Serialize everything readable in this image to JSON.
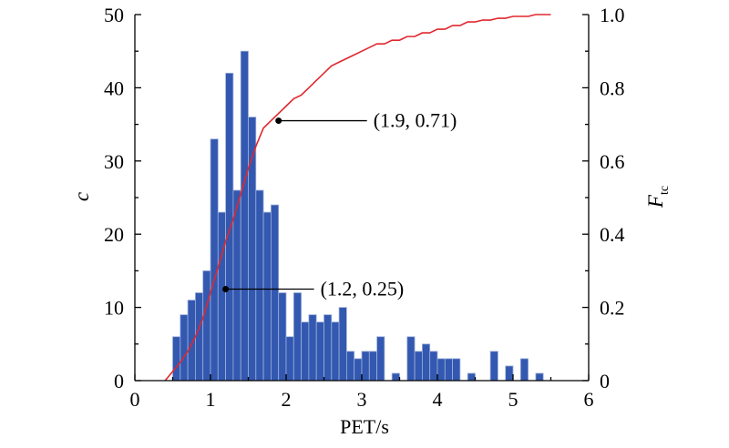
{
  "chart_data": {
    "type": "bar",
    "xlabel": "PET/s",
    "ylabel_left": "c",
    "ylabel_right_main": "F",
    "ylabel_right_sub": "tc",
    "xlim": [
      0,
      6
    ],
    "ylim_left": [
      0,
      50
    ],
    "ylim_right": [
      0,
      1.0
    ],
    "x_ticks": [
      "0",
      "1",
      "2",
      "3",
      "4",
      "5",
      "6"
    ],
    "y_left_ticks": [
      "0",
      "10",
      "20",
      "30",
      "40",
      "50"
    ],
    "y_right_ticks": [
      "0",
      "0.2",
      "0.4",
      "0.6",
      "0.8",
      "1.0"
    ],
    "grid": false,
    "colors": {
      "bars": "#3358b0",
      "bar_edge": "#9fb1da",
      "cdf_line": "#e0282e",
      "axes": "#000000"
    },
    "bin_width": 0.1,
    "histogram": {
      "bin_left_edges": [
        0.4,
        0.5,
        0.6,
        0.7,
        0.8,
        0.9,
        1.0,
        1.1,
        1.2,
        1.3,
        1.4,
        1.5,
        1.6,
        1.7,
        1.8,
        1.9,
        2.0,
        2.1,
        2.2,
        2.3,
        2.4,
        2.5,
        2.6,
        2.7,
        2.8,
        2.9,
        3.0,
        3.1,
        3.2,
        3.3,
        3.4,
        3.5,
        3.6,
        3.7,
        3.8,
        3.9,
        4.0,
        4.1,
        4.2,
        4.3,
        4.4,
        4.5,
        4.6,
        4.7,
        4.8,
        4.9,
        5.0,
        5.1,
        5.2,
        5.3,
        5.4
      ],
      "counts": [
        0,
        6,
        9,
        11,
        12,
        15,
        33,
        23,
        42,
        26,
        45,
        36,
        26,
        23,
        24,
        12,
        6,
        12,
        8,
        9,
        8,
        9,
        8,
        10,
        4,
        3,
        4,
        4,
        6,
        0,
        1,
        0,
        6,
        4,
        5,
        4,
        3,
        3,
        3,
        0,
        1,
        0,
        0,
        4,
        0,
        2,
        0,
        3,
        0,
        1,
        0
      ]
    },
    "cdf": {
      "x": [
        0.4,
        0.5,
        0.6,
        0.7,
        0.8,
        0.9,
        1.0,
        1.1,
        1.2,
        1.3,
        1.4,
        1.5,
        1.6,
        1.7,
        1.8,
        1.9,
        2.0,
        2.1,
        2.2,
        2.3,
        2.4,
        2.5,
        2.6,
        2.7,
        2.8,
        2.9,
        3.0,
        3.1,
        3.2,
        3.3,
        3.4,
        3.5,
        3.6,
        3.7,
        3.8,
        3.9,
        4.0,
        4.1,
        4.2,
        4.3,
        4.4,
        4.5,
        4.6,
        4.7,
        4.8,
        4.9,
        5.0,
        5.1,
        5.2,
        5.3,
        5.4,
        5.5
      ],
      "y": [
        0.0,
        0.025,
        0.05,
        0.08,
        0.12,
        0.17,
        0.24,
        0.31,
        0.38,
        0.44,
        0.51,
        0.58,
        0.64,
        0.69,
        0.71,
        0.73,
        0.75,
        0.77,
        0.78,
        0.8,
        0.82,
        0.84,
        0.86,
        0.87,
        0.88,
        0.89,
        0.9,
        0.91,
        0.92,
        0.92,
        0.93,
        0.93,
        0.94,
        0.94,
        0.95,
        0.95,
        0.96,
        0.96,
        0.97,
        0.97,
        0.98,
        0.98,
        0.985,
        0.985,
        0.99,
        0.99,
        0.995,
        0.995,
        0.995,
        1.0,
        1.0,
        1.0
      ]
    },
    "annotations": [
      {
        "x": 1.2,
        "y": 0.25,
        "label": "(1.2, 0.25)"
      },
      {
        "x": 1.9,
        "y": 0.71,
        "label": "(1.9, 0.71)"
      }
    ]
  }
}
